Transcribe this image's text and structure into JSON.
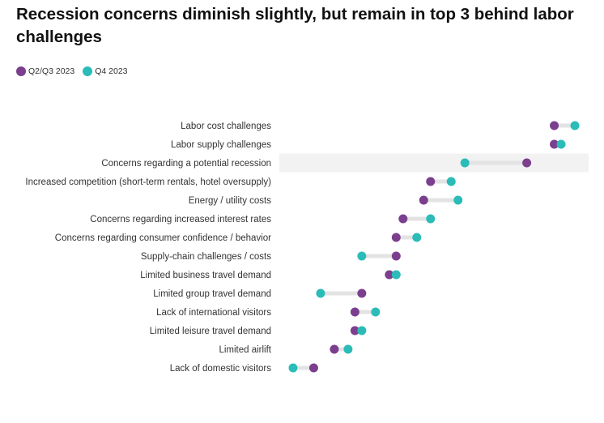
{
  "chart_data": {
    "type": "dumbbell",
    "title": "Recession concerns diminish slightly, but remain in top 3 behind labor challenges",
    "series": [
      {
        "name": "Q2/Q3 2023",
        "color": "#7b3f8e"
      },
      {
        "name": "Q4 2023",
        "color": "#2bbcb8"
      }
    ],
    "highlight_category": "Concerns regarding a potential recession",
    "categories": [
      "Labor cost challenges",
      "Labor supply challenges",
      "Concerns regarding a potential recession",
      "Increased competition (short-term rentals, hotel oversupply)",
      "Energy / utility costs",
      "Concerns regarding increased interest rates",
      "Concerns regarding consumer confidence / behavior",
      "Supply-chain challenges / costs",
      "Limited business travel demand",
      "Limited group travel demand",
      "Lack of international visitors",
      "Limited leisure travel demand",
      "Limited airlift",
      "Lack of domestic visitors"
    ],
    "values": {
      "Q2/Q3 2023": [
        90,
        90,
        86,
        72,
        71,
        68,
        67,
        67,
        66,
        62,
        61,
        61,
        58,
        55
      ],
      "Q4 2023": [
        93,
        91,
        77,
        75,
        76,
        72,
        70,
        62,
        67,
        56,
        64,
        62,
        60,
        52
      ]
    },
    "xlim": [
      50,
      95
    ],
    "grid": false,
    "legend_position": "top-left"
  }
}
